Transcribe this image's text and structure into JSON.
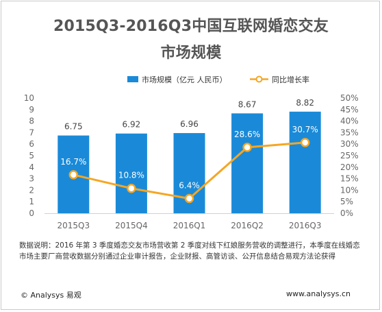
{
  "title_line1": "2015Q3-2016Q3中国互联网婚恋交友",
  "title_line2": "市场规模",
  "note": "数据说明：2016 年第 3 季度婚恋交友市场营收第 2 季度对线下红娘服务营收的调整进行，本季度在线婚恋市场主要厂商营收数据分别通过企业审计报告，企业财报、高管访谈、公开信息结合易观方法论获得",
  "footer": {
    "brand": "© Analysys 易观",
    "url": "www.analysys.cn"
  },
  "colors": {
    "bar": "#1a8ad8",
    "line": "#f5a623",
    "marker_fill": "#ffffff",
    "axis_text": "#666666",
    "grid": "#e2e2e2",
    "rate_label": "#ffffff",
    "value_label": "#444444"
  },
  "chart_data": {
    "type": "bar",
    "categories": [
      "2015Q3",
      "2015Q4",
      "2016Q1",
      "2016Q2",
      "2016Q3"
    ],
    "series": [
      {
        "name": "市场规模（亿元 人民币）",
        "type": "bar",
        "axis": "left",
        "values": [
          6.75,
          6.92,
          6.96,
          8.67,
          8.82
        ],
        "labels": [
          "6.75",
          "6.92",
          "6.96",
          "8.67",
          "8.82"
        ]
      },
      {
        "name": "同比增长率",
        "type": "line",
        "axis": "right",
        "values": [
          16.7,
          10.8,
          6.4,
          28.6,
          30.7
        ],
        "labels": [
          "16.7%",
          "10.8%",
          "6.4%",
          "28.6%",
          "30.7%"
        ]
      }
    ],
    "y_left": {
      "ylim": [
        0,
        10
      ],
      "ticks": [
        "0",
        "1",
        "2",
        "3",
        "4",
        "5",
        "6",
        "7",
        "8",
        "9",
        "10"
      ]
    },
    "y_right": {
      "ylim": [
        0,
        50
      ],
      "ticks": [
        "0%",
        "5%",
        "10%",
        "15%",
        "20%",
        "25%",
        "30%",
        "35%",
        "40%",
        "45%",
        "50%"
      ]
    },
    "legend_position": "top",
    "grid": false
  }
}
